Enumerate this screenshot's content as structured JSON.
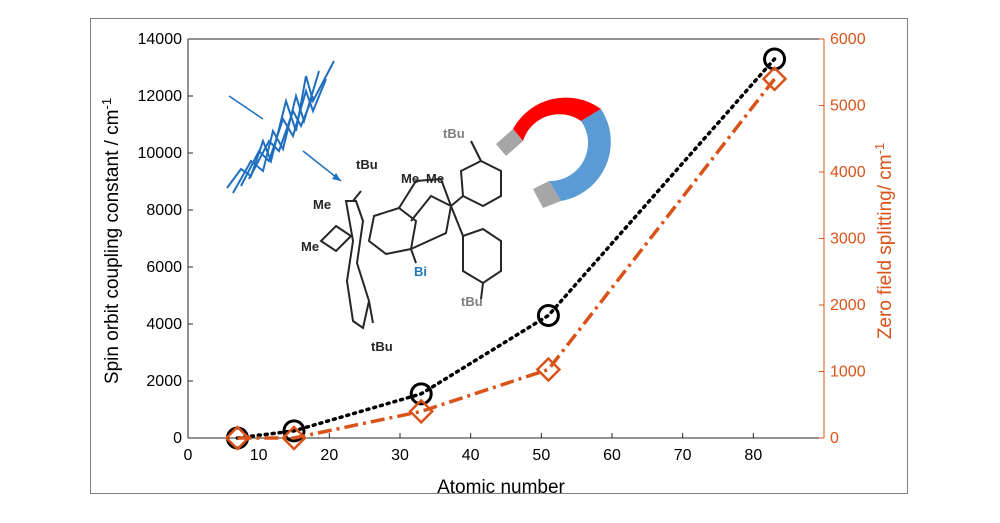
{
  "chart_data": {
    "type": "line",
    "xlabel": "Atomic number",
    "ylabel_left": "Spin orbit coupling constant / cm",
    "ylabel_left_sup": "-1",
    "ylabel_right": "Zero field splitting/ cm",
    "ylabel_right_sup": "-1",
    "xlim": [
      0,
      90
    ],
    "ylim_left": [
      0,
      14000
    ],
    "ylim_right": [
      0,
      6000
    ],
    "x_ticks": [
      "0",
      "10",
      "20",
      "30",
      "40",
      "50",
      "60",
      "70",
      "80"
    ],
    "y_left_ticks": [
      "0",
      "2000",
      "4000",
      "6000",
      "8000",
      "10000",
      "12000",
      "14000"
    ],
    "y_right_ticks": [
      "0",
      "1000",
      "2000",
      "3000",
      "4000",
      "5000",
      "6000"
    ],
    "grid": false,
    "series": [
      {
        "axis": "left",
        "color": "#000000",
        "marker": "circle",
        "linestyle": "dotted",
        "x": [
          7,
          15,
          33,
          51,
          83
        ],
        "y": [
          0,
          250,
          1550,
          4300,
          13300
        ]
      },
      {
        "axis": "right",
        "color": "#d95319",
        "marker": "diamond",
        "linestyle": "dashdot",
        "x": [
          7,
          15,
          33,
          51,
          83
        ],
        "y": [
          0,
          0,
          400,
          1030,
          5400
        ]
      }
    ],
    "annotations": {
      "molecule_labels": [
        "tBu",
        "Me",
        "Me",
        "Me",
        "Me",
        "Bi",
        "tBu",
        "tBu"
      ]
    },
    "colors": {
      "left_axis": "#000000",
      "right_axis": "#d95319",
      "bismuth": "#1f77b4",
      "wave": "#1f6fbf",
      "magnet_red": "#ff0000",
      "magnet_blue": "#5b9bd5",
      "magnet_tip": "#a6a6a6"
    }
  }
}
